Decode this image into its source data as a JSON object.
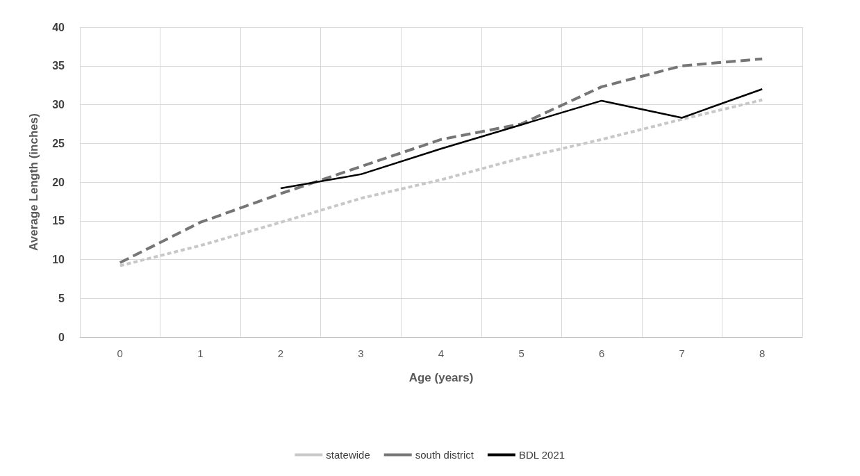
{
  "chart_data": {
    "type": "line",
    "xlabel": "Age (years)",
    "ylabel": "Average Length (inches)",
    "categories": [
      "0",
      "1",
      "2",
      "3",
      "4",
      "5",
      "6",
      "7",
      "8"
    ],
    "series": [
      {
        "name": "statewide",
        "color": "#c8c8c8",
        "line_style": "dashed",
        "values": [
          9.2,
          11.8,
          14.8,
          17.9,
          20.3,
          23.1,
          25.5,
          28.1,
          30.6
        ]
      },
      {
        "name": "south district",
        "color": "#767676",
        "line_style": "dashed",
        "values": [
          9.6,
          14.8,
          18.5,
          22,
          25.5,
          27.5,
          32.3,
          35,
          35.9
        ]
      },
      {
        "name": "BDL 2021",
        "color": "#000000",
        "line_style": "solid",
        "values": [
          null,
          null,
          19.2,
          21,
          24.3,
          27.4,
          30.5,
          28.3,
          32
        ]
      }
    ],
    "ylim": [
      0,
      40
    ],
    "yticks": [
      0,
      5,
      10,
      15,
      20,
      25,
      30,
      35,
      40
    ],
    "grid": true,
    "legend": "bottom",
    "marker": "none"
  }
}
